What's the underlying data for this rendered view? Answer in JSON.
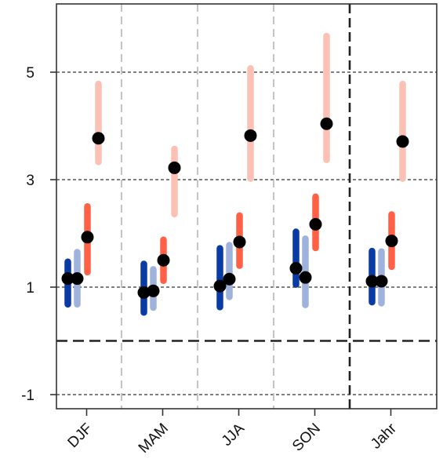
{
  "chart_data": {
    "type": "range-dot",
    "categories": [
      "DJF",
      "MAM",
      "JJA",
      "SON",
      "Jahr"
    ],
    "y_ticks": [
      -1,
      1,
      3,
      5
    ],
    "ylim": [
      -1.2,
      6.3
    ],
    "reference_line_y": 0,
    "grid": "horizontal dotted at y-ticks; vertical dashed between categories",
    "series": [
      {
        "color": "#0a3aa4",
        "ranges": [
          [
            0.68,
            1.47
          ],
          [
            0.53,
            1.43
          ],
          [
            0.63,
            1.72
          ],
          [
            1.05,
            2.03
          ],
          [
            0.72,
            1.67
          ]
        ],
        "points": [
          1.16,
          0.9,
          1.02,
          1.35,
          1.11
        ]
      },
      {
        "color": "#9fb2db",
        "ranges": [
          [
            0.68,
            1.65
          ],
          [
            0.62,
            1.33
          ],
          [
            0.82,
            1.78
          ],
          [
            0.67,
            1.9
          ],
          [
            0.7,
            1.66
          ]
        ],
        "points": [
          1.16,
          0.93,
          1.15,
          1.18,
          1.11
        ]
      },
      {
        "color": "#ff6046",
        "ranges": [
          [
            1.28,
            2.5
          ],
          [
            1.12,
            1.88
          ],
          [
            1.4,
            2.33
          ],
          [
            1.73,
            2.68
          ],
          [
            1.38,
            2.35
          ]
        ],
        "points": [
          1.93,
          1.5,
          1.84,
          2.17,
          1.86
        ]
      },
      {
        "color": "#fcc1b5",
        "ranges": [
          [
            3.33,
            4.78
          ],
          [
            2.36,
            3.57
          ],
          [
            3.02,
            5.07
          ],
          [
            3.37,
            5.67
          ],
          [
            3.02,
            4.78
          ]
        ],
        "points": [
          3.77,
          3.22,
          3.82,
          4.04,
          3.71
        ]
      }
    ]
  }
}
